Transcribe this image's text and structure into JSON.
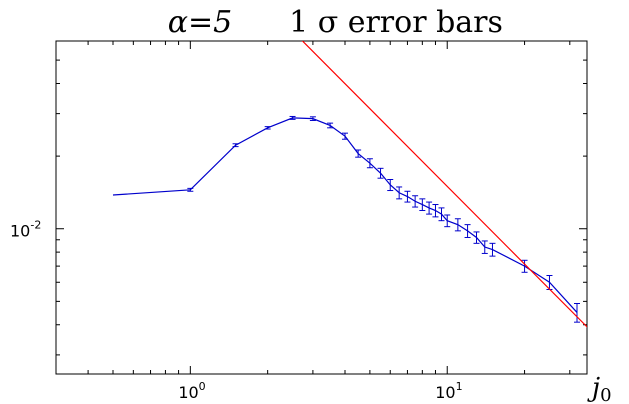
{
  "chart_data": {
    "type": "line",
    "title_left": "α=5",
    "title_right": "1 σ error bars",
    "xlabel_base": "j",
    "xlabel_sub": "0",
    "ylabel": "",
    "xscale": "log",
    "yscale": "log",
    "xlim": [
      0.3,
      35
    ],
    "ylim": [
      0.0025,
      0.06
    ],
    "grid": false,
    "x_ticks": [
      {
        "value": 1,
        "base": "10",
        "exp": "0"
      },
      {
        "value": 10,
        "base": "10",
        "exp": "1"
      }
    ],
    "y_ticks": [
      {
        "value": 0.01,
        "base": "10",
        "exp": "-2"
      }
    ],
    "series": [
      {
        "color": "#0000cc",
        "x": [
          0.5,
          1.0,
          1.5,
          2.0,
          2.5,
          3.0,
          3.5,
          4.0,
          4.5,
          5.0,
          5.5,
          6.0,
          6.5,
          7.0,
          7.5,
          8.0,
          8.5,
          9.0,
          9.5,
          10.0,
          11.0,
          12.0,
          13.0,
          14.0,
          15.0,
          20.0,
          25.0,
          32.0
        ],
        "y": [
          0.0138,
          0.0145,
          0.0222,
          0.0262,
          0.0288,
          0.0286,
          0.0268,
          0.0242,
          0.0205,
          0.0187,
          0.017,
          0.0152,
          0.0141,
          0.0136,
          0.013,
          0.0126,
          0.0122,
          0.0119,
          0.0115,
          0.0108,
          0.0104,
          0.0098,
          0.0092,
          0.0084,
          0.0082,
          0.007,
          0.006,
          0.0045
        ],
        "err": [
          0.0,
          0.0002,
          0.0003,
          0.0003,
          0.0004,
          0.0005,
          0.0006,
          0.0007,
          0.0007,
          0.0008,
          0.0008,
          0.0008,
          0.0008,
          0.0007,
          0.0007,
          0.0007,
          0.0007,
          0.0007,
          0.0007,
          0.0006,
          0.0006,
          0.0006,
          0.0005,
          0.0005,
          0.0005,
          0.0004,
          0.0004,
          0.0004
        ]
      },
      {
        "color": "#ff0000",
        "x": [
          2.5,
          40
        ],
        "y": [
          0.066,
          0.0034
        ]
      }
    ]
  }
}
